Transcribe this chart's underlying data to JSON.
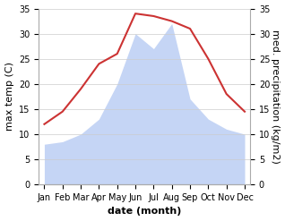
{
  "months": [
    "Jan",
    "Feb",
    "Mar",
    "Apr",
    "May",
    "Jun",
    "Jul",
    "Aug",
    "Sep",
    "Oct",
    "Nov",
    "Dec"
  ],
  "temperature": [
    12,
    14.5,
    19,
    24,
    26,
    34,
    33.5,
    32.5,
    31,
    25,
    18,
    14.5
  ],
  "precipitation": [
    8,
    8.5,
    10,
    13,
    20,
    30,
    27,
    32,
    17,
    13,
    11,
    10
  ],
  "temp_color": "#cc3333",
  "precip_fill_color": "#c5d5f5",
  "ylim_left": [
    0,
    35
  ],
  "ylim_right": [
    0,
    35
  ],
  "xlabel": "date (month)",
  "ylabel_left": "max temp (C)",
  "ylabel_right": "med. precipitation (kg/m2)",
  "bg_color": "#ffffff",
  "grid_color": "#cccccc",
  "label_fontsize": 8,
  "tick_fontsize": 7,
  "yticks": [
    0,
    5,
    10,
    15,
    20,
    25,
    30,
    35
  ]
}
